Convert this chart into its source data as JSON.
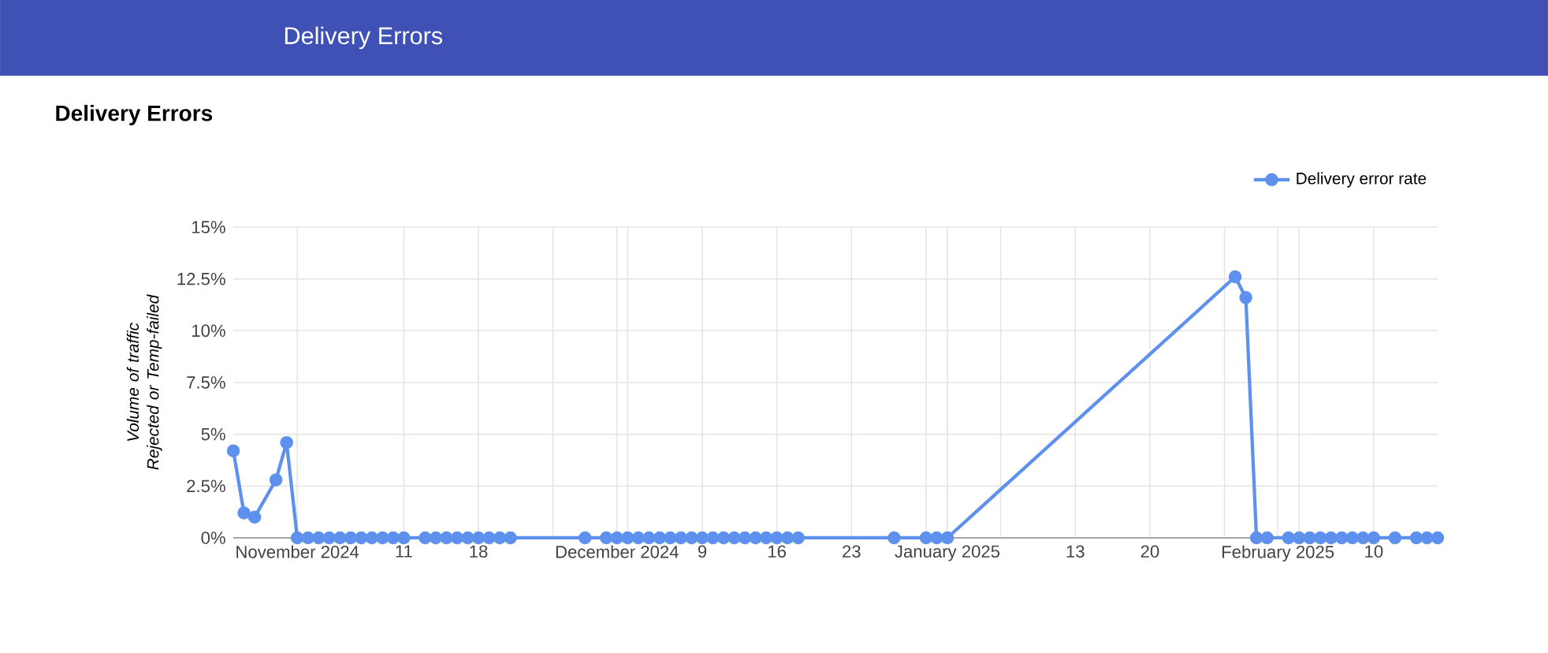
{
  "chart_data": {
    "type": "line",
    "title": "Delivery Errors",
    "annotations": [
      "Delivery Errors"
    ],
    "ylabel": "Volume of traffic Rejected or Temp-failed",
    "x": [
      "2024-10-26",
      "2024-10-27",
      "2024-10-28",
      "2024-10-30",
      "2024-10-31",
      "2024-11-01",
      "2024-11-02",
      "2024-11-03",
      "2024-11-04",
      "2024-11-05",
      "2024-11-06",
      "2024-11-07",
      "2024-11-08",
      "2024-11-09",
      "2024-11-10",
      "2024-11-11",
      "2024-11-13",
      "2024-11-14",
      "2024-11-15",
      "2024-11-16",
      "2024-11-17",
      "2024-11-18",
      "2024-11-19",
      "2024-11-20",
      "2024-11-21",
      "2024-11-28",
      "2024-11-30",
      "2024-12-01",
      "2024-12-02",
      "2024-12-03",
      "2024-12-04",
      "2024-12-05",
      "2024-12-06",
      "2024-12-07",
      "2024-12-08",
      "2024-12-09",
      "2024-12-10",
      "2024-12-11",
      "2024-12-12",
      "2024-12-13",
      "2024-12-14",
      "2024-12-15",
      "2024-12-16",
      "2024-12-17",
      "2024-12-18",
      "2024-12-27",
      "2024-12-30",
      "2024-12-31",
      "2025-01-01",
      "2025-01-28",
      "2025-01-29",
      "2025-01-30",
      "2025-01-31",
      "2025-02-02",
      "2025-02-03",
      "2025-02-04",
      "2025-02-05",
      "2025-02-06",
      "2025-02-07",
      "2025-02-08",
      "2025-02-09",
      "2025-02-10",
      "2025-02-12",
      "2025-02-14",
      "2025-02-15",
      "2025-02-16"
    ],
    "series": [
      {
        "name": "Delivery error rate",
        "color": "#5e91ee",
        "values": [
          4.2,
          1.2,
          1.0,
          2.8,
          4.6,
          0,
          0,
          0,
          0,
          0,
          0,
          0,
          0,
          0,
          0,
          0,
          0,
          0,
          0,
          0,
          0,
          0,
          0,
          0,
          0,
          0,
          0,
          0,
          0,
          0,
          0,
          0,
          0,
          0,
          0,
          0,
          0,
          0,
          0,
          0,
          0,
          0,
          0,
          0,
          0,
          0,
          0,
          0,
          0,
          12.6,
          11.6,
          0,
          0,
          0,
          0,
          0,
          0,
          0,
          0,
          0,
          0,
          0,
          0,
          0,
          0,
          0
        ]
      }
    ],
    "xlim": [
      "2024-10-26",
      "2025-02-16"
    ],
    "xticks": [
      {
        "value": "2024-11-01",
        "label": "November 2024"
      },
      {
        "value": "2024-11-11",
        "label": "11"
      },
      {
        "value": "2024-11-18",
        "label": "18"
      },
      {
        "value": "2024-11-25",
        "label": null
      },
      {
        "value": "2024-12-01",
        "label": "December 2024"
      },
      {
        "value": "2024-12-02",
        "label": null
      },
      {
        "value": "2024-12-09",
        "label": "9"
      },
      {
        "value": "2024-12-16",
        "label": "16"
      },
      {
        "value": "2024-12-23",
        "label": "23"
      },
      {
        "value": "2024-12-30",
        "label": null
      },
      {
        "value": "2025-01-01",
        "label": "January 2025"
      },
      {
        "value": "2025-01-06",
        "label": null
      },
      {
        "value": "2025-01-13",
        "label": "13"
      },
      {
        "value": "2025-01-20",
        "label": "20"
      },
      {
        "value": "2025-01-27",
        "label": null
      },
      {
        "value": "2025-02-01",
        "label": "February 2025"
      },
      {
        "value": "2025-02-03",
        "label": null
      },
      {
        "value": "2025-02-10",
        "label": "10"
      }
    ],
    "ylim": [
      0,
      15
    ],
    "yticks": [
      {
        "value": 0,
        "label": "0%"
      },
      {
        "value": 2.5,
        "label": "2.5%"
      },
      {
        "value": 5,
        "label": "5%"
      },
      {
        "value": 7.5,
        "label": "7.5%"
      },
      {
        "value": 10,
        "label": "10%"
      },
      {
        "value": 12.5,
        "label": "12.5%"
      },
      {
        "value": 15,
        "label": "15%"
      }
    ],
    "grid": true,
    "legend": "top right",
    "marker": "circle",
    "line_style": "solid"
  }
}
